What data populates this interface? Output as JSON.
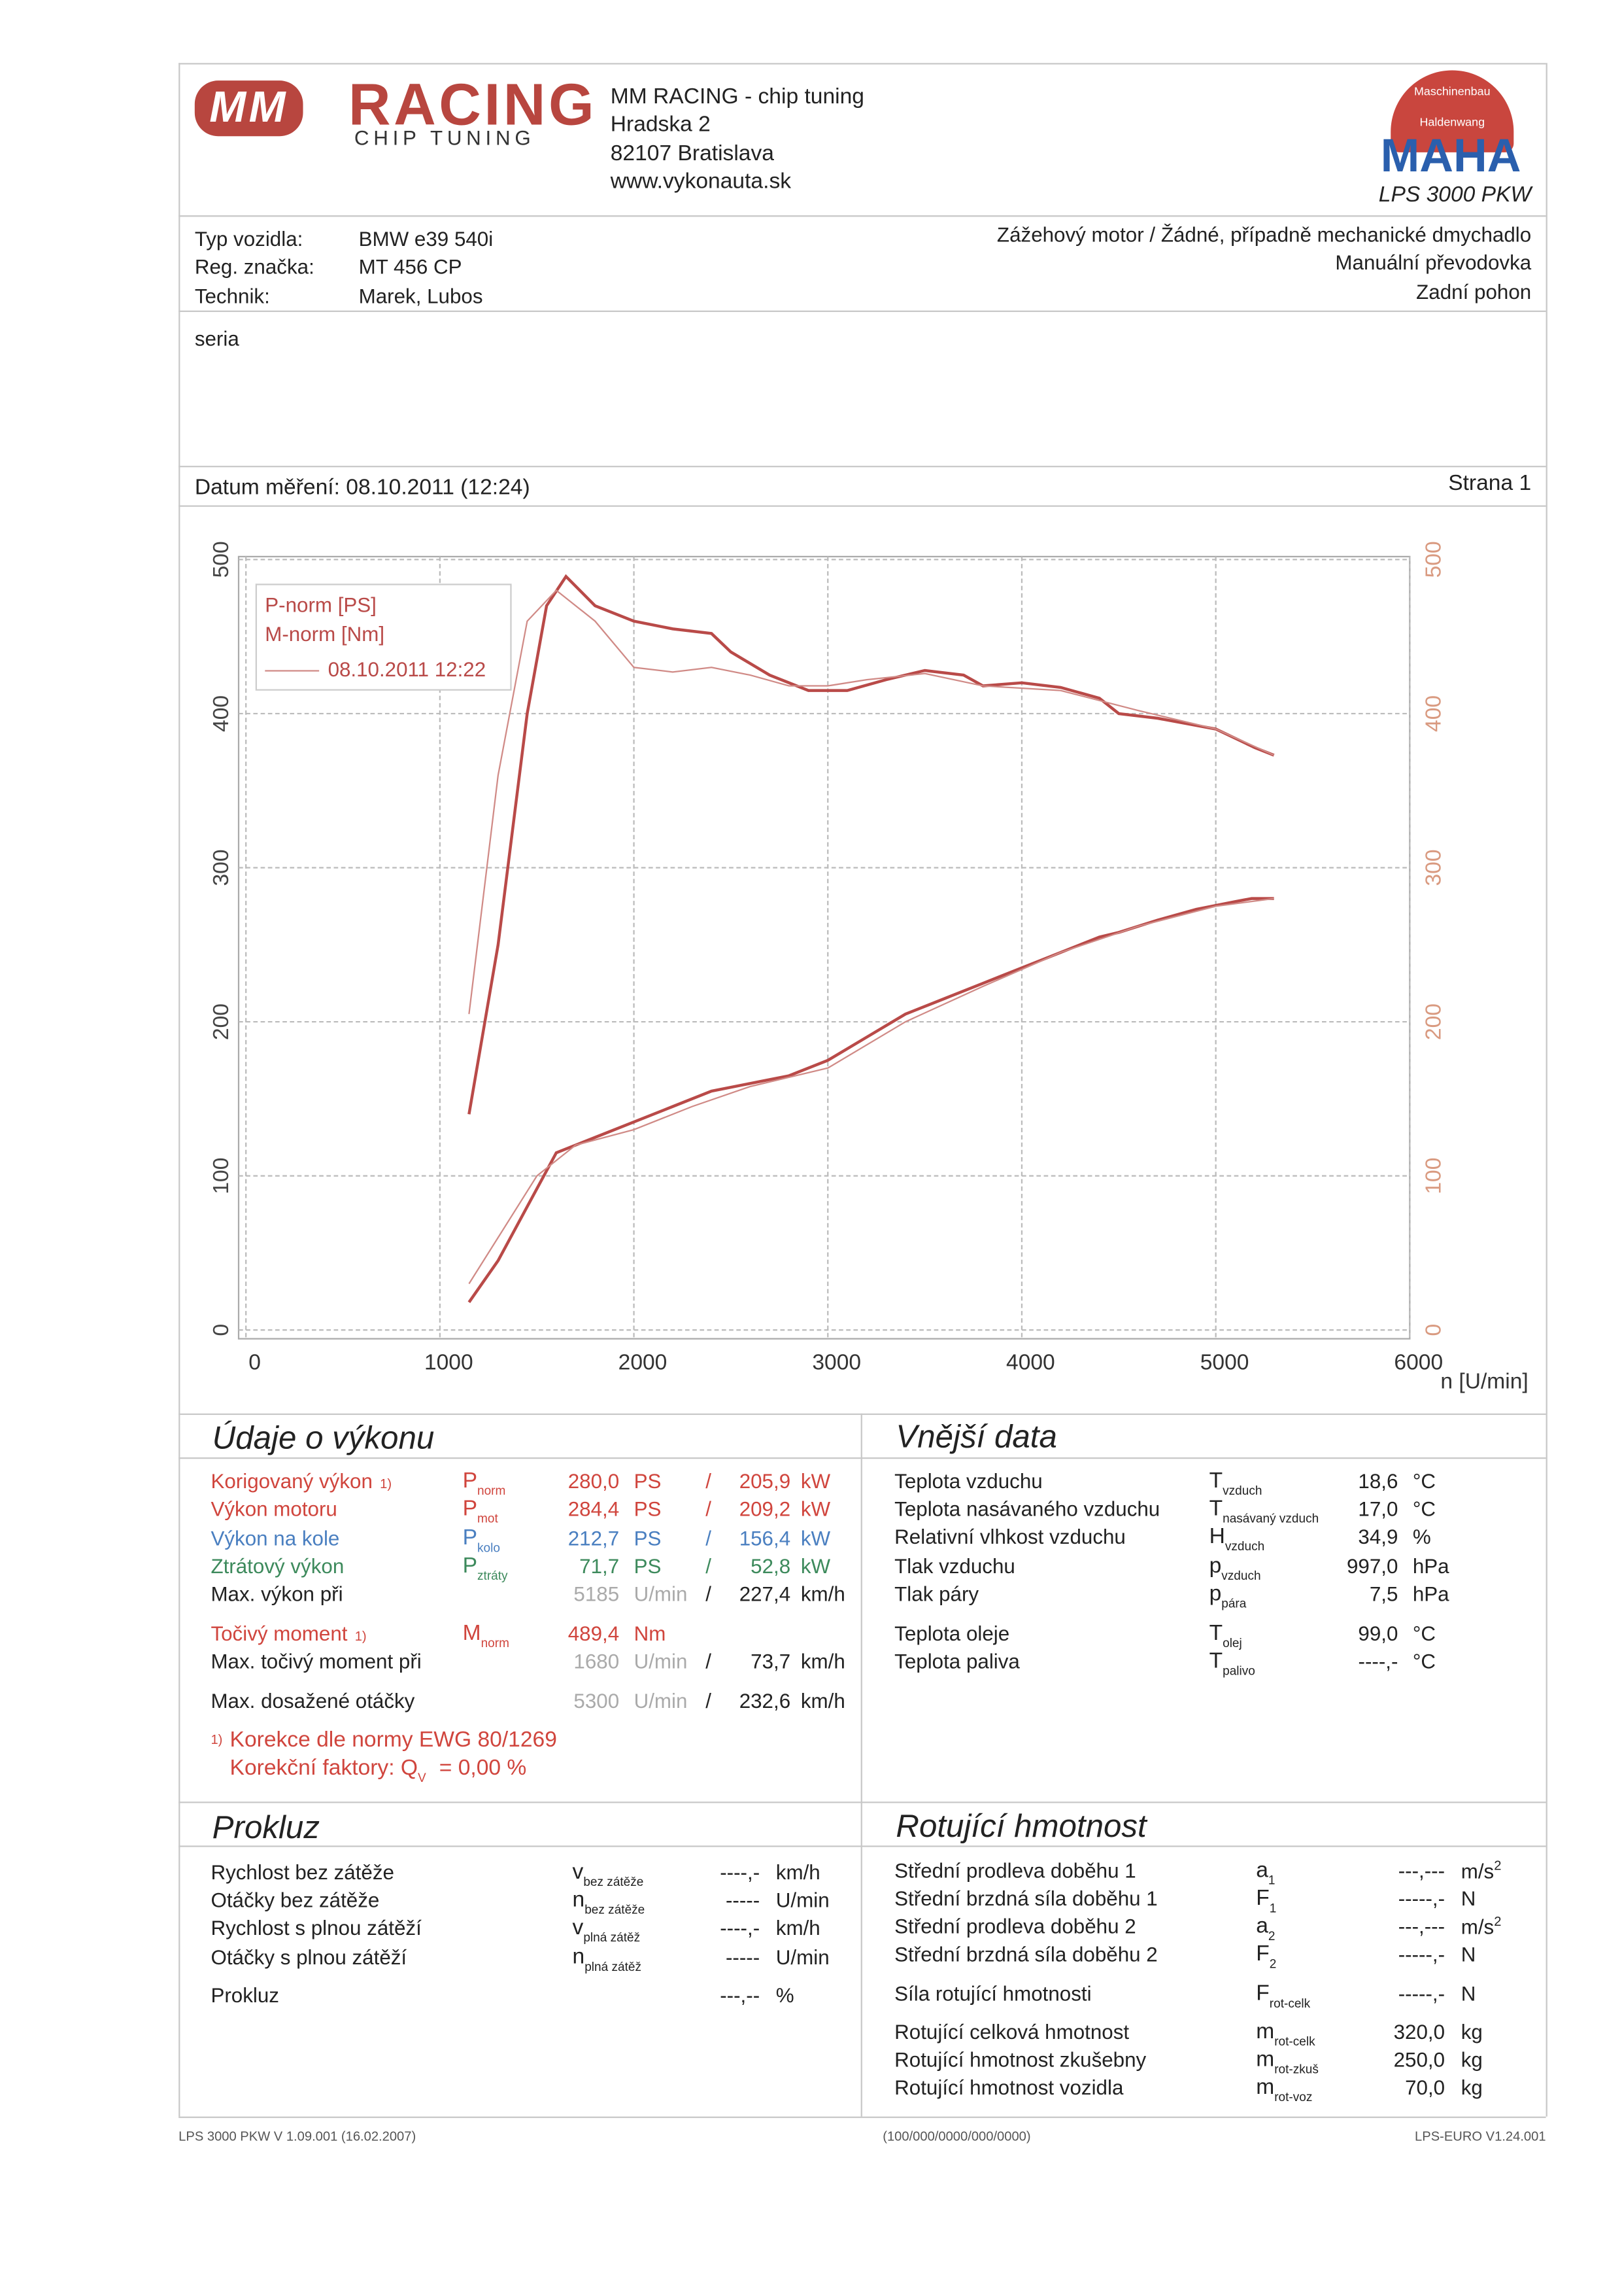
{
  "header": {
    "logo": {
      "mark": "MM",
      "name": "RACING",
      "sub": "CHIP TUNING"
    },
    "company": [
      "MM RACING - chip tuning",
      "Hradska 2",
      "82107 Bratislava",
      "www.vykonauta.sk"
    ],
    "maha": {
      "ring_top": "Maschinenbau",
      "ring_bottom": "Haldenwang",
      "name": "MAHA",
      "model": "LPS 3000 PKW"
    }
  },
  "vehicle": {
    "rows": [
      [
        "Typ vozidla:",
        "BMW e39 540i"
      ],
      [
        "Reg. značka:",
        "MT 456 CP"
      ],
      [
        "Technik:",
        "Marek, Lubos"
      ]
    ],
    "specs": [
      "Zážehový motor / Žádné, případně mechanické dmychadlo",
      "Manuální převodovka",
      "Zadní pohon"
    ],
    "note": "seria"
  },
  "measurement": {
    "date": "Datum měření: 08.10.2011 (12:24)",
    "page": "Strana 1"
  },
  "chart_data": {
    "type": "line",
    "x_label": "n [U/min]",
    "legend_run": "08.10.2011 12:22",
    "xlim": [
      0,
      6000
    ],
    "xticks": [
      0,
      1000,
      2000,
      3000,
      4000,
      5000,
      6000
    ],
    "ylim": [
      0,
      500
    ],
    "yticks": [
      0,
      100,
      200,
      300,
      400,
      500
    ],
    "y2lim": [
      0,
      500
    ],
    "y2ticks": [
      0,
      100,
      200,
      300,
      400,
      500
    ],
    "grid": true,
    "series": [
      {
        "name": "P-norm [PS]",
        "color": "#b94a48",
        "line_width": 2,
        "x": [
          1150,
          1300,
          1450,
          1600,
          1800,
          2000,
          2200,
          2400,
          2600,
          2800,
          3000,
          3200,
          3400,
          3600,
          3800,
          4000,
          4200,
          4400,
          4500,
          4700,
          4900,
          5100,
          5185,
          5300
        ],
        "values": [
          18,
          45,
          80,
          115,
          125,
          135,
          145,
          155,
          160,
          165,
          175,
          190,
          205,
          215,
          225,
          235,
          245,
          255,
          258,
          266,
          273,
          278,
          280,
          280
        ]
      },
      {
        "name": "M-norm [Nm]",
        "color": "#b94a48",
        "line_width": 2,
        "x": [
          1150,
          1300,
          1450,
          1550,
          1650,
          1800,
          2000,
          2200,
          2400,
          2500,
          2700,
          2900,
          3100,
          3300,
          3500,
          3700,
          3800,
          4000,
          4200,
          4400,
          4500,
          4700,
          5000,
          5200,
          5300
        ],
        "values": [
          140,
          250,
          400,
          470,
          489,
          470,
          460,
          455,
          452,
          440,
          425,
          415,
          415,
          422,
          428,
          425,
          418,
          420,
          417,
          410,
          400,
          397,
          390,
          378,
          373
        ]
      },
      {
        "color": "#d08a86",
        "line_width": 1,
        "x": [
          1150,
          1300,
          1500,
          1700,
          2000,
          2300,
          2600,
          3000,
          3400,
          3800,
          4200,
          4600,
          5000,
          5300
        ],
        "values": [
          30,
          60,
          100,
          120,
          130,
          145,
          158,
          170,
          200,
          223,
          245,
          262,
          275,
          280
        ]
      },
      {
        "color": "#d08a86",
        "line_width": 1,
        "x": [
          1150,
          1300,
          1450,
          1600,
          1800,
          2000,
          2200,
          2400,
          2600,
          2800,
          3000,
          3200,
          3500,
          3800,
          4200,
          4600,
          5000,
          5300
        ],
        "values": [
          205,
          360,
          460,
          480,
          460,
          430,
          427,
          430,
          425,
          418,
          418,
          422,
          426,
          418,
          415,
          402,
          390,
          373
        ]
      }
    ]
  },
  "performance": {
    "title": "Údaje o výkonu",
    "rows": [
      {
        "label": "Korigovaný výkon",
        "note": "1)",
        "sym": "P",
        "sub": "norm",
        "v1": "280,0",
        "u1": "PS",
        "sep": "/",
        "v2": "205,9",
        "u2": "kW",
        "color": "#d0453d"
      },
      {
        "label": "Výkon motoru",
        "sym": "P",
        "sub": "mot",
        "v1": "284,4",
        "u1": "PS",
        "sep": "/",
        "v2": "209,2",
        "u2": "kW",
        "color": "#d0453d"
      },
      {
        "label": "Výkon na kole",
        "sym": "P",
        "sub": "kolo",
        "v1": "212,7",
        "u1": "PS",
        "sep": "/",
        "v2": "156,4",
        "u2": "kW",
        "color": "#4a7fc0"
      },
      {
        "label": "Ztrátový výkon",
        "sym": "P",
        "sub": "ztráty",
        "v1": "71,7",
        "u1": "PS",
        "sep": "/",
        "v2": "52,8",
        "u2": "kW",
        "color": "#3d8a5c"
      },
      {
        "label": "Max. výkon při",
        "v1": "5185",
        "u1": "U/min",
        "sep": "/",
        "v2": "227,4",
        "u2": "km/h",
        "color": "#222",
        "muted": true
      },
      {
        "label": "Točivý moment",
        "note": "1)",
        "sym": "M",
        "sub": "norm",
        "v1": "489,4",
        "u1": "Nm",
        "color": "#d0453d"
      },
      {
        "label": "Max. točivý moment při",
        "v1": "1680",
        "u1": "U/min",
        "sep": "/",
        "v2": "73,7",
        "u2": "km/h",
        "color": "#222",
        "muted": true
      },
      {
        "label": "Max. dosažené otáčky",
        "v1": "5300",
        "u1": "U/min",
        "sep": "/",
        "v2": "232,6",
        "u2": "km/h",
        "color": "#222",
        "muted": true
      }
    ],
    "footnote": {
      "mark": "1)",
      "text": "Korekce dle normy EWG 80/1269",
      "factor": "Korekční faktory: Q",
      "factor_sub": "V",
      "factor_value": "=  0,00 %"
    }
  },
  "external": {
    "title": "Vnější data",
    "rows": [
      {
        "label": "Teplota vzduchu",
        "sym": "T",
        "sub": "vzduch",
        "value": "18,6",
        "unit": "°C"
      },
      {
        "label": "Teplota nasávaného vzduchu",
        "sym": "T",
        "sub": "nasávaný vzduch",
        "value": "17,0",
        "unit": "°C"
      },
      {
        "label": "Relativní vlhkost vzduchu",
        "sym": "H",
        "sub": "vzduch",
        "value": "34,9",
        "unit": "%"
      },
      {
        "label": "Tlak vzduchu",
        "sym": "p",
        "sub": "vzduch",
        "value": "997,0",
        "unit": "hPa"
      },
      {
        "label": "Tlak páry",
        "sym": "p",
        "sub": "pára",
        "value": "7,5",
        "unit": "hPa"
      },
      {
        "label": "Teplota oleje",
        "sym": "T",
        "sub": "olej",
        "value": "99,0",
        "unit": "°C"
      },
      {
        "label": "Teplota paliva",
        "sym": "T",
        "sub": "palivo",
        "value": "----,-",
        "unit": "°C"
      }
    ]
  },
  "slip": {
    "title": "Prokluz",
    "rows": [
      {
        "label": "Rychlost bez zátěže",
        "sym": "v",
        "sub": "bez zátěže",
        "value": "----,-",
        "unit": "km/h"
      },
      {
        "label": "Otáčky bez zátěže",
        "sym": "n",
        "sub": "bez zátěže",
        "value": "-----",
        "unit": "U/min"
      },
      {
        "label": "Rychlost s plnou zátěží",
        "sym": "v",
        "sub": "plná zátěž",
        "value": "----,-",
        "unit": "km/h"
      },
      {
        "label": "Otáčky s plnou zátěží",
        "sym": "n",
        "sub": "plná zátěž",
        "value": "-----",
        "unit": "U/min"
      },
      {
        "label": "Prokluz",
        "value": "---,--",
        "unit": "%"
      }
    ]
  },
  "rotating": {
    "title": "Rotující hmotnost",
    "rows": [
      {
        "label": "Střední prodleva doběhu 1",
        "sym": "a",
        "sub": "1",
        "value": "---,---",
        "unit": "m/s",
        "unit_sup": "2"
      },
      {
        "label": "Střední brzdná síla doběhu 1",
        "sym": "F",
        "sub": "1",
        "value": "-----,-",
        "unit": "N"
      },
      {
        "label": "Střední prodleva doběhu 2",
        "sym": "a",
        "sub": "2",
        "value": "---,---",
        "unit": "m/s",
        "unit_sup": "2"
      },
      {
        "label": "Střední brzdná síla doběhu 2",
        "sym": "F",
        "sub": "2",
        "value": "-----,-",
        "unit": "N"
      },
      {
        "label": "Síla rotující hmotnosti",
        "sym": "F",
        "sub": "rot-celk",
        "value": "-----,-",
        "unit": "N"
      },
      {
        "label": "Rotující celková hmotnost",
        "sym": "m",
        "sub": "rot-celk",
        "value": "320,0",
        "unit": "kg"
      },
      {
        "label": "Rotující hmotnost zkušebny",
        "sym": "m",
        "sub": "rot-zkuš",
        "value": "250,0",
        "unit": "kg"
      },
      {
        "label": "Rotující hmotnost vozidla",
        "sym": "m",
        "sub": "rot-voz",
        "value": "70,0",
        "unit": "kg"
      }
    ]
  },
  "footer": {
    "left": "LPS 3000 PKW V 1.09.001 (16.02.2007)",
    "center": "(100/000/0000/000/0000)",
    "right": "LPS-EURO V1.24.001"
  }
}
